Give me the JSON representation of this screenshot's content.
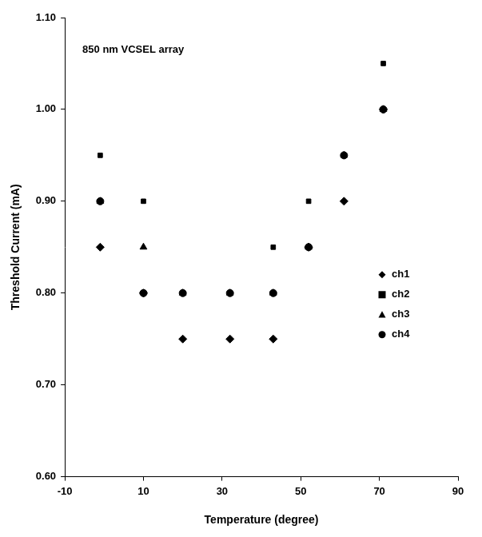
{
  "chart_data": {
    "type": "scatter",
    "title": "850 nm VCSEL array",
    "x_label": "Temperature (degree)",
    "y_label": "Threshold Current (mA)",
    "x": [
      -1,
      10,
      20,
      32,
      43,
      52,
      61,
      71
    ],
    "series": [
      {
        "name": "ch1",
        "color": "#000000",
        "marker": "diamond",
        "values": [
          0.85,
          0.8,
          0.75,
          0.75,
          0.75,
          0.85,
          0.9,
          1.0
        ]
      },
      {
        "name": "ch2",
        "color": "#000000",
        "marker": "square",
        "values": [
          0.95,
          0.9,
          0.8,
          0.8,
          0.85,
          0.9,
          0.95,
          1.05
        ]
      },
      {
        "name": "ch3",
        "color": "#000000",
        "marker": "triangle",
        "values": [
          0.9,
          0.85,
          0.8,
          0.8,
          0.8,
          0.85,
          0.95,
          1.0
        ]
      },
      {
        "name": "ch4",
        "color": "#000000",
        "marker": "circle",
        "values": [
          0.9,
          0.8,
          0.8,
          0.8,
          0.8,
          0.85,
          0.95,
          1.0
        ]
      }
    ],
    "xlim": [
      -10,
      90
    ],
    "xticks": [
      -10,
      10,
      30,
      50,
      70,
      90
    ],
    "ylim": [
      0.6,
      1.1
    ],
    "yticks": [
      {
        "value": 0.6,
        "label": "0.60"
      },
      {
        "value": 0.7,
        "label": "0.70"
      },
      {
        "value": 0.8,
        "label": "0.80"
      },
      {
        "value": 0.9,
        "label": "0.90"
      },
      {
        "value": 1.0,
        "label": "1.00"
      },
      {
        "value": 1.1,
        "label": "1.10"
      }
    ],
    "grid": false,
    "legend": "right"
  }
}
